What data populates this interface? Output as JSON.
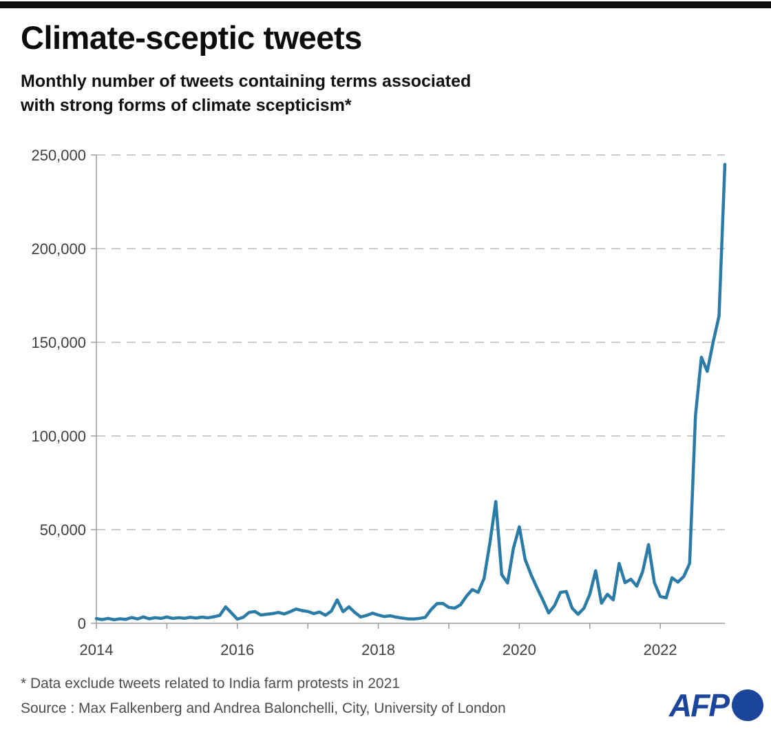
{
  "header": {
    "title": "Climate-sceptic tweets",
    "subtitle_lines": [
      "Monthly number of tweets containing terms associated",
      "with strong forms of climate scepticism*"
    ]
  },
  "footer": {
    "footnote": "* Data exclude tweets related to India farm protests in 2021",
    "source": "Source : Max Falkenberg and Andrea Balonchelli, City, University of London",
    "logo_text": "AFP"
  },
  "colors": {
    "line": "#2a7ba6",
    "axis": "#9b9b9b",
    "gridline": "#b9b9b9",
    "tick_label": "#3e3e3e",
    "afp_blue": "#1b459b",
    "top_bar": "#0d0d0d"
  },
  "chart_data": {
    "type": "line",
    "title": "Climate-sceptic tweets",
    "subtitle": "Monthly number of tweets containing terms associated with strong forms of climate scepticism*",
    "frequency": "monthly",
    "x_start": "2014-01",
    "x_end": "2022-12",
    "ylim": [
      0,
      250000
    ],
    "grid": "horizontal-dashed",
    "legend": "none",
    "y_ticks": [
      0,
      50000,
      100000,
      150000,
      200000,
      250000
    ],
    "y_tick_labels": [
      "0",
      "50,000",
      "100,000",
      "150,000",
      "200,000",
      "250,000"
    ],
    "x_tick_labels": [
      "2014",
      "2016",
      "2018",
      "2020",
      "2022"
    ],
    "x_minor_tick_years": [
      2014,
      2015,
      2016,
      2017,
      2018,
      2019,
      2020,
      2021,
      2022
    ],
    "values": [
      2500,
      2000,
      2600,
      1900,
      2400,
      2100,
      3100,
      2300,
      3400,
      2400,
      3000,
      2600,
      3400,
      2600,
      3000,
      2700,
      3200,
      2800,
      3300,
      2900,
      3500,
      4200,
      8800,
      5500,
      2200,
      3200,
      5800,
      6300,
      4400,
      4800,
      5200,
      5800,
      5000,
      6200,
      7600,
      6800,
      6300,
      5200,
      6000,
      4300,
      6500,
      12500,
      6200,
      8800,
      5800,
      3400,
      4200,
      5400,
      4400,
      3600,
      4000,
      3300,
      2800,
      2400,
      2300,
      2600,
      3200,
      7400,
      10500,
      10600,
      8500,
      8100,
      9900,
      14500,
      18000,
      16500,
      24000,
      43000,
      65000,
      26000,
      21500,
      40000,
      51500,
      34000,
      26000,
      19000,
      12500,
      5500,
      9500,
      16500,
      17000,
      8100,
      4800,
      8000,
      15400,
      28000,
      10700,
      15500,
      12500,
      32000,
      21700,
      23500,
      19800,
      27500,
      42000,
      21700,
      14300,
      13600,
      24300,
      22000,
      25000,
      32000,
      111000,
      142000,
      134500,
      150000,
      164000,
      245000
    ]
  }
}
